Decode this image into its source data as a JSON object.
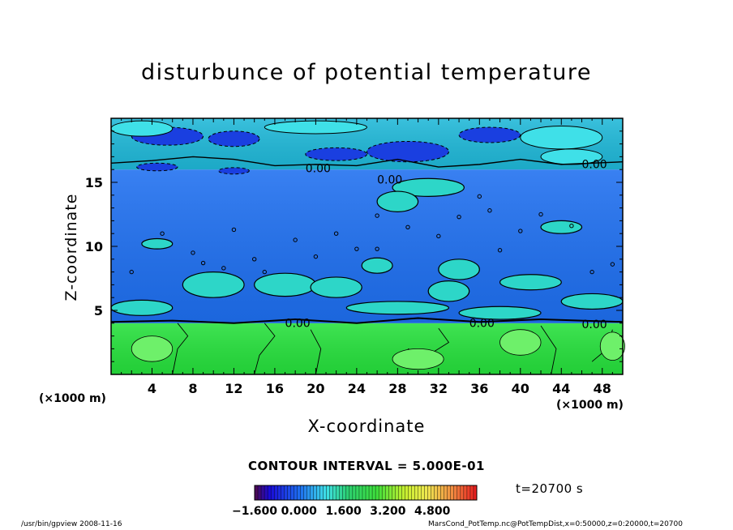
{
  "title": "disturbunce of potential temperature",
  "footer": {
    "left": "/usr/bin/gpview   2008-11-16",
    "right": "MarsCond_PotTemp.nc@PotTempDist,x=0:50000,z=0:20000,t=20700"
  },
  "time_label": "t=20700 s",
  "contour_interval": "CONTOUR INTERVAL = 5.000E-01",
  "contour_labels": [
    "0.00",
    "0.00",
    "0.00",
    "0.00",
    "0.00",
    "0.00"
  ],
  "colors": {
    "upper_layer": "#1fb8d8",
    "middle_layer": "#1e6ff0",
    "lower_layer": "#26e03c",
    "contour": "#000000"
  },
  "chart_data": {
    "type": "heatmap",
    "title": "disturbunce of potential temperature",
    "xlabel": "X-coordinate",
    "ylabel": "Z-coordinate",
    "x_unit": "(×1000 m)",
    "y_unit": "(×1000 m)",
    "xlim": [
      0,
      50
    ],
    "ylim": [
      0,
      20
    ],
    "x_ticks": [
      4,
      8,
      12,
      16,
      20,
      24,
      28,
      32,
      36,
      40,
      44,
      48
    ],
    "y_ticks": [
      5,
      10,
      15
    ],
    "layers": [
      {
        "z_range": [
          0,
          4
        ],
        "value": 2.2
      },
      {
        "z_range": [
          4,
          16
        ],
        "value": -0.3
      },
      {
        "z_range": [
          16,
          20
        ],
        "value": 0.3
      }
    ],
    "colorbar": {
      "min": -1.6,
      "max": 6.4,
      "ticks": [
        -1.6,
        0.0,
        1.6,
        3.2,
        4.8
      ],
      "tick_labels": [
        "−1.600",
        "0.000",
        "1.600",
        "3.200",
        "4.800"
      ]
    }
  }
}
